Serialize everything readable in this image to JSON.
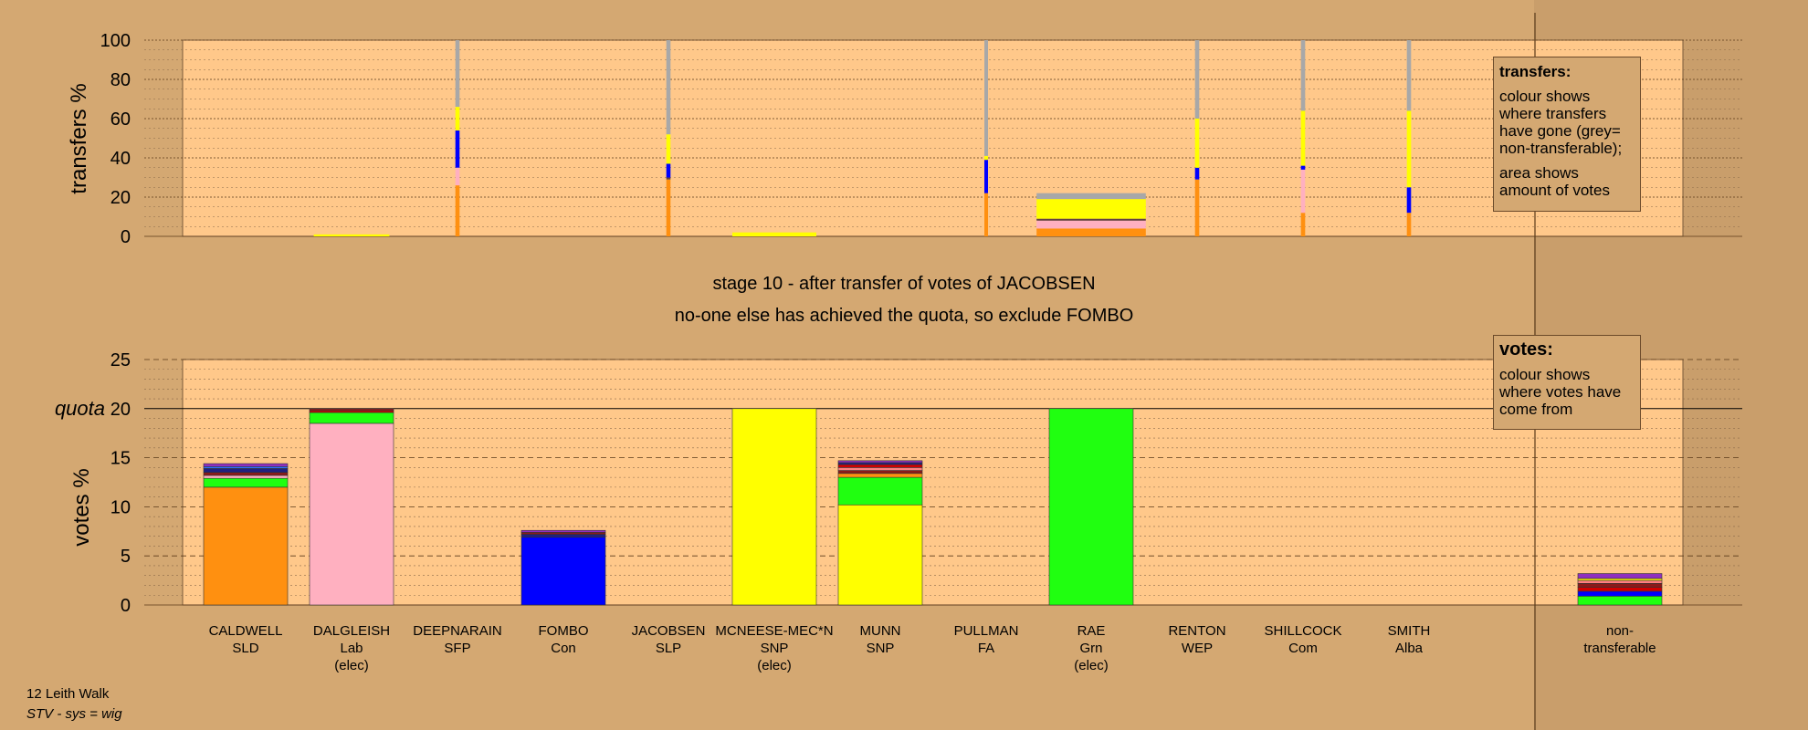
{
  "stage": {
    "line1": "stage 10 - after transfer of votes of JACOBSEN",
    "line2": "no-one else has achieved the quota, so exclude FOMBO"
  },
  "footer": {
    "ward": "12 Leith Walk",
    "system": "STV - sys = wig"
  },
  "legend_transfers": {
    "title": "transfers:",
    "para1": "colour shows where transfers have gone (grey= non-transferable);",
    "para2": "area shows amount of votes"
  },
  "legend_votes": {
    "title": "votes:",
    "para1": "colour shows where votes have come from"
  },
  "colors": {
    "CALDWELL": "#ff9010",
    "DALGLEISH": "#ffb0c0",
    "DEEPNARAIN": "#9030c0",
    "FOMBO": "#0000ff",
    "JACOBSEN": "#8b1a1a",
    "MCNEESE": "#ffff00",
    "MUNN": "#ffff00",
    "PULLMAN": "#202080",
    "RAE": "#20ff10",
    "RENTON": "#ff8080",
    "SHILLCOCK": "#d00000",
    "SMITH": "#3070ff",
    "nontransferable": "#a8a8a8",
    "other": "#604040"
  },
  "chart_data": [
    {
      "type": "bar",
      "title": "",
      "ylabel": "transfers %",
      "ylim": [
        0,
        100
      ],
      "yticks": [
        0,
        20,
        40,
        60,
        80,
        100
      ],
      "candidates": [
        "CALDWELL",
        "DALGLEISH",
        "DEEPNARAIN",
        "FOMBO",
        "JACOBSEN",
        "MCNEESE-MEC*N",
        "MUNN",
        "PULLMAN",
        "RAE",
        "RENTON",
        "SHILLCOCK",
        "SMITH"
      ],
      "width_fraction": [
        0,
        0.9,
        0.05,
        0,
        0.05,
        1.0,
        0,
        0.03,
        1.3,
        0.05,
        0.05,
        0.05
      ],
      "segments": [
        [],
        [
          {
            "to": "MCNEESE",
            "value": 1
          }
        ],
        [
          {
            "to": "CALDWELL",
            "value": 26
          },
          {
            "to": "DALGLEISH",
            "value": 9
          },
          {
            "to": "FOMBO",
            "value": 19
          },
          {
            "to": "MUNN",
            "value": 12
          },
          {
            "to": "nontransferable",
            "value": 34
          }
        ],
        [],
        [
          {
            "to": "CALDWELL",
            "value": 29
          },
          {
            "to": "other",
            "value": 1
          },
          {
            "to": "FOMBO",
            "value": 7
          },
          {
            "to": "MUNN",
            "value": 15
          },
          {
            "to": "nontransferable",
            "value": 48
          }
        ],
        [
          {
            "to": "MCNEESE",
            "value": 2
          }
        ],
        [],
        [
          {
            "to": "CALDWELL",
            "value": 22
          },
          {
            "to": "FOMBO",
            "value": 17
          },
          {
            "to": "MUNN",
            "value": 2
          },
          {
            "to": "nontransferable",
            "value": 59
          }
        ],
        [
          {
            "to": "CALDWELL",
            "value": 4
          },
          {
            "to": "DALGLEISH",
            "value": 4
          },
          {
            "to": "other",
            "value": 1
          },
          {
            "to": "MUNN",
            "value": 10
          },
          {
            "to": "nontransferable",
            "value": 3
          }
        ],
        [
          {
            "to": "CALDWELL",
            "value": 29
          },
          {
            "to": "FOMBO",
            "value": 6
          },
          {
            "to": "MUNN",
            "value": 25
          },
          {
            "to": "nontransferable",
            "value": 40
          }
        ],
        [
          {
            "to": "CALDWELL",
            "value": 12
          },
          {
            "to": "DALGLEISH",
            "value": 22
          },
          {
            "to": "FOMBO",
            "value": 2
          },
          {
            "to": "MUNN",
            "value": 28
          },
          {
            "to": "nontransferable",
            "value": 36
          }
        ],
        [
          {
            "to": "CALDWELL",
            "value": 12
          },
          {
            "to": "FOMBO",
            "value": 13
          },
          {
            "to": "MUNN",
            "value": 39
          },
          {
            "to": "nontransferable",
            "value": 36
          }
        ]
      ]
    },
    {
      "type": "bar",
      "title": "",
      "ylabel": "votes %",
      "quota_label": "quota",
      "quota": 20,
      "ylim": [
        0,
        25
      ],
      "yticks": [
        0,
        5,
        10,
        15,
        20,
        25
      ],
      "categories": [
        "CALDWELL",
        "DALGLEISH",
        "DEEPNARAIN",
        "FOMBO",
        "JACOBSEN",
        "MCNEESE-MEC*N",
        "MUNN",
        "PULLMAN",
        "RAE",
        "RENTON",
        "SHILLCOCK",
        "SMITH",
        "non-transferable"
      ],
      "labels": [
        [
          "CALDWELL",
          "SLD"
        ],
        [
          "DALGLEISH",
          "Lab",
          "(elec)"
        ],
        [
          "DEEPNARAIN",
          "SFP"
        ],
        [
          "FOMBO",
          "Con"
        ],
        [
          "JACOBSEN",
          "SLP"
        ],
        [
          "MCNEESE-MEC*N",
          "SNP",
          "(elec)"
        ],
        [
          "MUNN",
          "SNP"
        ],
        [
          "PULLMAN",
          "FA"
        ],
        [
          "RAE",
          "Grn",
          "(elec)"
        ],
        [
          "RENTON",
          "WEP"
        ],
        [
          "SHILLCOCK",
          "Com"
        ],
        [
          "SMITH",
          "Alba"
        ],
        [
          "non-",
          "transferable"
        ]
      ],
      "segments": [
        [
          {
            "from": "CALDWELL",
            "value": 12.0
          },
          {
            "from": "RAE",
            "value": 0.9
          },
          {
            "from": "DALGLEISH",
            "value": 0.3
          },
          {
            "from": "JACOBSEN",
            "value": 0.3
          },
          {
            "from": "PULLMAN",
            "value": 0.4
          },
          {
            "from": "SMITH",
            "value": 0.2
          },
          {
            "from": "DEEPNARAIN",
            "value": 0.3
          }
        ],
        [
          {
            "from": "DALGLEISH",
            "value": 18.5
          },
          {
            "from": "RAE",
            "value": 1.1
          },
          {
            "from": "SHILLCOCK",
            "value": 0.2
          },
          {
            "from": "JACOBSEN",
            "value": 0.2
          }
        ],
        [],
        [
          {
            "from": "FOMBO",
            "value": 6.9
          },
          {
            "from": "PULLMAN",
            "value": 0.3
          },
          {
            "from": "JACOBSEN",
            "value": 0.2
          },
          {
            "from": "DEEPNARAIN",
            "value": 0.2
          }
        ],
        [],
        [
          {
            "from": "MCNEESE",
            "value": 20.0
          }
        ],
        [
          {
            "from": "MUNN",
            "value": 10.2
          },
          {
            "from": "RAE",
            "value": 2.8
          },
          {
            "from": "CALDWELL",
            "value": 0.4
          },
          {
            "from": "JACOBSEN",
            "value": 0.3
          },
          {
            "from": "RENTON",
            "value": 0.3
          },
          {
            "from": "SHILLCOCK",
            "value": 0.3
          },
          {
            "from": "PULLMAN",
            "value": 0.2
          },
          {
            "from": "DEEPNARAIN",
            "value": 0.2
          }
        ],
        [],
        [
          {
            "from": "RAE",
            "value": 20.0
          }
        ],
        [],
        [],
        [],
        [
          {
            "from": "RAE",
            "value": 0.9
          },
          {
            "from": "FOMBO",
            "value": 0.5
          },
          {
            "from": "SHILLCOCK",
            "value": 0.4
          },
          {
            "from": "JACOBSEN",
            "value": 0.4
          },
          {
            "from": "RENTON",
            "value": 0.3
          },
          {
            "from": "MCNEESE",
            "value": 0.2
          },
          {
            "from": "DEEPNARAIN",
            "value": 0.5
          }
        ]
      ]
    }
  ]
}
